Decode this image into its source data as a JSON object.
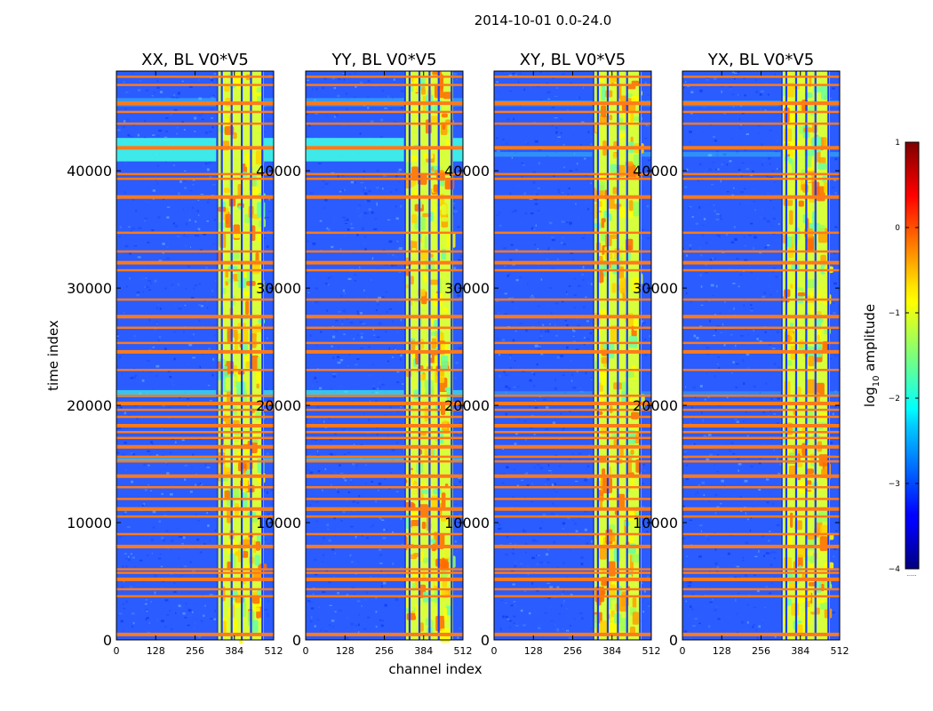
{
  "chart_data": {
    "type": "heatmap",
    "suptitle": "2014-10-01 0.0-24.0",
    "xlabel": "channel index",
    "ylabel": "time index",
    "xlim": [
      0,
      512
    ],
    "ylim": [
      0,
      48500
    ],
    "xticks": [
      0,
      128,
      256,
      384,
      512
    ],
    "xtick_labels": [
      "0",
      "128",
      "256",
      "384",
      "512"
    ],
    "yticks": [
      0,
      10000,
      20000,
      30000,
      40000
    ],
    "ytick_labels": [
      "0",
      "10000",
      "20000",
      "30000",
      "40000"
    ],
    "panels": [
      {
        "title": "XX, BL V0*V5",
        "bright_band": [
          325,
          480
        ],
        "strong_wide_band": true
      },
      {
        "title": "YY, BL V0*V5",
        "bright_band": [
          320,
          480
        ],
        "strong_wide_band": true
      },
      {
        "title": "XY, BL V0*V5",
        "bright_band": [
          320,
          480
        ],
        "strong_wide_band": false
      },
      {
        "title": "YX, BL V0*V5",
        "bright_band": [
          320,
          480
        ],
        "strong_wide_band": false
      }
    ],
    "flagged_time_rows": [
      500,
      3700,
      4300,
      5200,
      5700,
      6000,
      8000,
      9000,
      10500,
      11200,
      12000,
      13000,
      14000,
      15200,
      15600,
      16500,
      17200,
      17700,
      18300,
      19000,
      19600,
      20200,
      20800,
      23000,
      24600,
      25300,
      26600,
      27600,
      29000,
      31500,
      32200,
      33100,
      34700,
      37800,
      39300,
      39700,
      42000,
      44000,
      45000,
      45800,
      47300,
      48000
    ],
    "colorbar": {
      "label": "log10 amplitude",
      "label_main": "log",
      "label_sub": "10",
      "label_tail": " amplitude",
      "range": [
        -4,
        1
      ],
      "ticks": [
        1,
        0,
        -1,
        -2,
        -3,
        -4
      ],
      "tick_labels": [
        "1",
        "0",
        "−1",
        "−2",
        "−3",
        "−4"
      ],
      "colormap": "jet",
      "extend_label": "......"
    }
  }
}
